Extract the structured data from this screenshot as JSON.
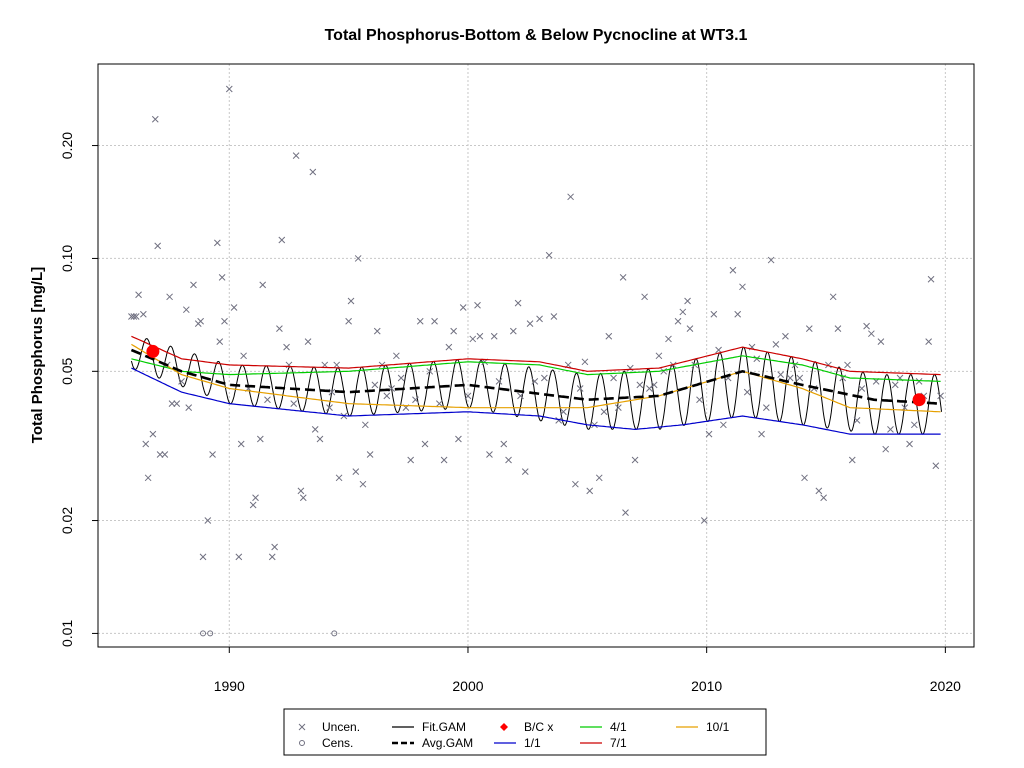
{
  "chart_data": {
    "type": "scatter",
    "title": "Total Phosphorus-Bottom & Below Pycnocline at WT3.1",
    "xlabel": "",
    "ylabel": "Total Phosphorus [mg/L]",
    "y_scale": "log",
    "xlim": [
      1984.5,
      2021.2
    ],
    "ylim": [
      0.0092,
      0.33
    ],
    "x_ticks": [
      1990,
      2000,
      2010,
      2020
    ],
    "x_tick_labels": [
      "1990",
      "2000",
      "2010",
      "2020"
    ],
    "y_ticks": [
      0.01,
      0.02,
      0.05,
      0.1,
      0.2
    ],
    "y_tick_labels": [
      "0.01",
      "0.02",
      "0.05",
      "0.10",
      "0.20"
    ],
    "grid": true,
    "legend_position": "bottom",
    "legend": [
      {
        "label": "Uncen.",
        "symbol": "x",
        "color": "#707080"
      },
      {
        "label": "Cens.",
        "symbol": "circle",
        "color": "#707080"
      },
      {
        "label": "Fit.GAM",
        "symbol": "line",
        "color": "#000000"
      },
      {
        "label": "Avg.GAM",
        "symbol": "dashed-line",
        "color": "#000000"
      },
      {
        "label": "B/C x",
        "symbol": "diamond",
        "color": "#ff0000"
      },
      {
        "label": "1/1",
        "symbol": "line",
        "color": "#0000cc"
      },
      {
        "label": "4/1",
        "symbol": "line",
        "color": "#00cc00"
      },
      {
        "label": "7/1",
        "symbol": "line",
        "color": "#cc0000"
      },
      {
        "label": "10/1",
        "symbol": "line",
        "color": "#e6a000"
      }
    ],
    "uncensored_points": [
      [
        1985.9,
        0.07
      ],
      [
        1986.0,
        0.07
      ],
      [
        1986.1,
        0.07
      ],
      [
        1986.2,
        0.08
      ],
      [
        1986.4,
        0.071
      ],
      [
        1986.5,
        0.032
      ],
      [
        1986.6,
        0.026
      ],
      [
        1986.7,
        0.056
      ],
      [
        1986.8,
        0.034
      ],
      [
        1986.9,
        0.235
      ],
      [
        1987.0,
        0.108
      ],
      [
        1987.1,
        0.03
      ],
      [
        1987.3,
        0.03
      ],
      [
        1987.4,
        0.052
      ],
      [
        1987.5,
        0.079
      ],
      [
        1987.6,
        0.041
      ],
      [
        1987.8,
        0.041
      ],
      [
        1988.0,
        0.047
      ],
      [
        1988.2,
        0.073
      ],
      [
        1988.3,
        0.04
      ],
      [
        1988.5,
        0.085
      ],
      [
        1988.7,
        0.067
      ],
      [
        1988.8,
        0.068
      ],
      [
        1988.9,
        0.016
      ],
      [
        1989.1,
        0.02
      ],
      [
        1989.3,
        0.03
      ],
      [
        1989.5,
        0.11
      ],
      [
        1989.6,
        0.06
      ],
      [
        1989.7,
        0.089
      ],
      [
        1989.8,
        0.068
      ],
      [
        1990.0,
        0.283
      ],
      [
        1990.2,
        0.074
      ],
      [
        1990.4,
        0.016
      ],
      [
        1990.5,
        0.032
      ],
      [
        1990.6,
        0.055
      ],
      [
        1990.8,
        0.045
      ],
      [
        1991.0,
        0.022
      ],
      [
        1991.1,
        0.023
      ],
      [
        1991.3,
        0.033
      ],
      [
        1991.4,
        0.085
      ],
      [
        1991.6,
        0.042
      ],
      [
        1991.8,
        0.016
      ],
      [
        1991.9,
        0.017
      ],
      [
        1992.1,
        0.065
      ],
      [
        1992.2,
        0.112
      ],
      [
        1992.4,
        0.058
      ],
      [
        1992.5,
        0.052
      ],
      [
        1992.7,
        0.041
      ],
      [
        1992.8,
        0.188
      ],
      [
        1993.0,
        0.024
      ],
      [
        1993.1,
        0.023
      ],
      [
        1993.3,
        0.06
      ],
      [
        1993.5,
        0.17
      ],
      [
        1993.6,
        0.035
      ],
      [
        1993.8,
        0.033
      ],
      [
        1994.0,
        0.052
      ],
      [
        1994.2,
        0.04
      ],
      [
        1994.3,
        0.044
      ],
      [
        1994.5,
        0.052
      ],
      [
        1994.6,
        0.026
      ],
      [
        1994.8,
        0.038
      ],
      [
        1995.0,
        0.068
      ],
      [
        1995.1,
        0.077
      ],
      [
        1995.3,
        0.027
      ],
      [
        1995.4,
        0.1
      ],
      [
        1995.6,
        0.025
      ],
      [
        1995.7,
        0.036
      ],
      [
        1995.9,
        0.03
      ],
      [
        1996.1,
        0.046
      ],
      [
        1996.2,
        0.064
      ],
      [
        1996.4,
        0.052
      ],
      [
        1996.6,
        0.043
      ],
      [
        1996.8,
        0.045
      ],
      [
        1997.0,
        0.055
      ],
      [
        1997.2,
        0.048
      ],
      [
        1997.4,
        0.04
      ],
      [
        1997.6,
        0.029
      ],
      [
        1997.8,
        0.042
      ],
      [
        1998.0,
        0.068
      ],
      [
        1998.2,
        0.032
      ],
      [
        1998.4,
        0.05
      ],
      [
        1998.6,
        0.068
      ],
      [
        1998.8,
        0.041
      ],
      [
        1999.0,
        0.029
      ],
      [
        1999.2,
        0.058
      ],
      [
        1999.4,
        0.064
      ],
      [
        1999.6,
        0.033
      ],
      [
        1999.8,
        0.074
      ],
      [
        2000.0,
        0.043
      ],
      [
        2000.2,
        0.061
      ],
      [
        2000.4,
        0.075
      ],
      [
        2000.5,
        0.062
      ],
      [
        2000.7,
        0.053
      ],
      [
        2000.9,
        0.03
      ],
      [
        2001.1,
        0.062
      ],
      [
        2001.3,
        0.047
      ],
      [
        2001.5,
        0.032
      ],
      [
        2001.7,
        0.029
      ],
      [
        2001.9,
        0.064
      ],
      [
        2002.1,
        0.076
      ],
      [
        2002.2,
        0.043
      ],
      [
        2002.4,
        0.027
      ],
      [
        2002.6,
        0.067
      ],
      [
        2002.8,
        0.047
      ],
      [
        2003.0,
        0.069
      ],
      [
        2003.2,
        0.048
      ],
      [
        2003.4,
        0.102
      ],
      [
        2003.6,
        0.07
      ],
      [
        2003.8,
        0.037
      ],
      [
        2004.0,
        0.039
      ],
      [
        2004.2,
        0.052
      ],
      [
        2004.3,
        0.146
      ],
      [
        2004.5,
        0.025
      ],
      [
        2004.7,
        0.045
      ],
      [
        2004.9,
        0.053
      ],
      [
        2005.1,
        0.024
      ],
      [
        2005.3,
        0.036
      ],
      [
        2005.5,
        0.026
      ],
      [
        2005.7,
        0.039
      ],
      [
        2005.9,
        0.062
      ],
      [
        2006.1,
        0.048
      ],
      [
        2006.3,
        0.04
      ],
      [
        2006.5,
        0.089
      ],
      [
        2006.6,
        0.021
      ],
      [
        2006.8,
        0.051
      ],
      [
        2007.0,
        0.029
      ],
      [
        2007.2,
        0.046
      ],
      [
        2007.4,
        0.079
      ],
      [
        2007.6,
        0.045
      ],
      [
        2007.8,
        0.046
      ],
      [
        2008.0,
        0.055
      ],
      [
        2008.2,
        0.05
      ],
      [
        2008.4,
        0.061
      ],
      [
        2008.6,
        0.052
      ],
      [
        2008.8,
        0.068
      ],
      [
        2009.0,
        0.072
      ],
      [
        2009.2,
        0.077
      ],
      [
        2009.3,
        0.065
      ],
      [
        2009.5,
        0.052
      ],
      [
        2009.7,
        0.042
      ],
      [
        2009.9,
        0.02
      ],
      [
        2010.1,
        0.034
      ],
      [
        2010.3,
        0.071
      ],
      [
        2010.5,
        0.057
      ],
      [
        2010.7,
        0.036
      ],
      [
        2010.9,
        0.048
      ],
      [
        2011.1,
        0.093
      ],
      [
        2011.3,
        0.071
      ],
      [
        2011.5,
        0.084
      ],
      [
        2011.7,
        0.044
      ],
      [
        2011.9,
        0.058
      ],
      [
        2012.1,
        0.054
      ],
      [
        2012.3,
        0.034
      ],
      [
        2012.5,
        0.04
      ],
      [
        2012.7,
        0.099
      ],
      [
        2012.9,
        0.059
      ],
      [
        2013.1,
        0.049
      ],
      [
        2013.3,
        0.062
      ],
      [
        2013.5,
        0.048
      ],
      [
        2013.7,
        0.052
      ],
      [
        2013.9,
        0.048
      ],
      [
        2014.1,
        0.026
      ],
      [
        2014.3,
        0.065
      ],
      [
        2014.5,
        0.045
      ],
      [
        2014.7,
        0.024
      ],
      [
        2014.9,
        0.023
      ],
      [
        2015.1,
        0.052
      ],
      [
        2015.3,
        0.079
      ],
      [
        2015.5,
        0.065
      ],
      [
        2015.7,
        0.048
      ],
      [
        2015.9,
        0.052
      ],
      [
        2016.1,
        0.029
      ],
      [
        2016.3,
        0.037
      ],
      [
        2016.5,
        0.045
      ],
      [
        2016.7,
        0.066
      ],
      [
        2016.9,
        0.063
      ],
      [
        2017.1,
        0.047
      ],
      [
        2017.3,
        0.06
      ],
      [
        2017.5,
        0.031
      ],
      [
        2017.7,
        0.035
      ],
      [
        2017.9,
        0.046
      ],
      [
        2018.1,
        0.048
      ],
      [
        2018.3,
        0.04
      ],
      [
        2018.5,
        0.032
      ],
      [
        2018.7,
        0.036
      ],
      [
        2018.9,
        0.047
      ],
      [
        2019.1,
        0.043
      ],
      [
        2019.3,
        0.06
      ],
      [
        2019.4,
        0.088
      ],
      [
        2019.6,
        0.028
      ],
      [
        2019.8,
        0.043
      ]
    ],
    "censored_points": [
      [
        1988.9,
        0.01
      ],
      [
        1989.2,
        0.01
      ],
      [
        1994.4,
        0.01
      ]
    ],
    "bc_points": [
      [
        1986.8,
        0.0565
      ],
      [
        2018.9,
        0.042
      ]
    ],
    "fit_gam": {
      "start": 1985.9,
      "end": 2019.85,
      "step": 0.02,
      "peak_month": 0.55,
      "upper": [
        [
          1985.9,
          0.063
        ],
        [
          1990,
          0.052
        ],
        [
          1995,
          0.051
        ],
        [
          2000,
          0.054
        ],
        [
          2005,
          0.049
        ],
        [
          2008,
          0.051
        ],
        [
          2011.5,
          0.058
        ],
        [
          2014,
          0.054
        ],
        [
          2017,
          0.049
        ],
        [
          2019.8,
          0.049
        ]
      ],
      "lower": [
        [
          1985.9,
          0.051
        ],
        [
          1990,
          0.041
        ],
        [
          1995,
          0.038
        ],
        [
          2000,
          0.04
        ],
        [
          2005,
          0.035
        ],
        [
          2008,
          0.035
        ],
        [
          2011.5,
          0.038
        ],
        [
          2014,
          0.036
        ],
        [
          2017,
          0.034
        ],
        [
          2019.8,
          0.034
        ]
      ]
    },
    "avg_gam": [
      [
        1985.9,
        0.057
      ],
      [
        1988,
        0.05
      ],
      [
        1990,
        0.046
      ],
      [
        1995,
        0.044
      ],
      [
        2000,
        0.046
      ],
      [
        2005,
        0.042
      ],
      [
        2008,
        0.043
      ],
      [
        2011.5,
        0.05
      ],
      [
        2014,
        0.046
      ],
      [
        2017,
        0.042
      ],
      [
        2019.8,
        0.041
      ]
    ],
    "seasonal_lines": [
      {
        "name": "1/1",
        "color": "#0000cc",
        "points": [
          [
            1985.9,
            0.051
          ],
          [
            1988,
            0.044
          ],
          [
            1990,
            0.041
          ],
          [
            1995,
            0.038
          ],
          [
            2000,
            0.039
          ],
          [
            2003,
            0.038
          ],
          [
            2005,
            0.036
          ],
          [
            2007,
            0.035
          ],
          [
            2009,
            0.036
          ],
          [
            2011.5,
            0.038
          ],
          [
            2014,
            0.036
          ],
          [
            2016,
            0.034
          ],
          [
            2019.8,
            0.034
          ]
        ]
      },
      {
        "name": "4/1",
        "color": "#00cc00",
        "points": [
          [
            1985.9,
            0.054
          ],
          [
            1988,
            0.05
          ],
          [
            1990,
            0.049
          ],
          [
            1995,
            0.05
          ],
          [
            2000,
            0.053
          ],
          [
            2003,
            0.052
          ],
          [
            2005,
            0.049
          ],
          [
            2008,
            0.05
          ],
          [
            2011.5,
            0.055
          ],
          [
            2014,
            0.052
          ],
          [
            2016,
            0.048
          ],
          [
            2019.8,
            0.047
          ]
        ]
      },
      {
        "name": "7/1",
        "color": "#cc0000",
        "points": [
          [
            1985.9,
            0.062
          ],
          [
            1988,
            0.054
          ],
          [
            1990,
            0.052
          ],
          [
            1995,
            0.051
          ],
          [
            2000,
            0.054
          ],
          [
            2003,
            0.053
          ],
          [
            2005,
            0.05
          ],
          [
            2008,
            0.051
          ],
          [
            2011.5,
            0.058
          ],
          [
            2014,
            0.054
          ],
          [
            2016,
            0.05
          ],
          [
            2019.8,
            0.049
          ]
        ]
      },
      {
        "name": "10/1",
        "color": "#e6a000",
        "points": [
          [
            1985.9,
            0.059
          ],
          [
            1988,
            0.049
          ],
          [
            1990,
            0.045
          ],
          [
            1995,
            0.041
          ],
          [
            2000,
            0.04
          ],
          [
            2003,
            0.04
          ],
          [
            2005,
            0.04
          ],
          [
            2008,
            0.043
          ],
          [
            2011.5,
            0.05
          ],
          [
            2014,
            0.045
          ],
          [
            2016,
            0.04
          ],
          [
            2019.8,
            0.039
          ]
        ]
      }
    ]
  }
}
